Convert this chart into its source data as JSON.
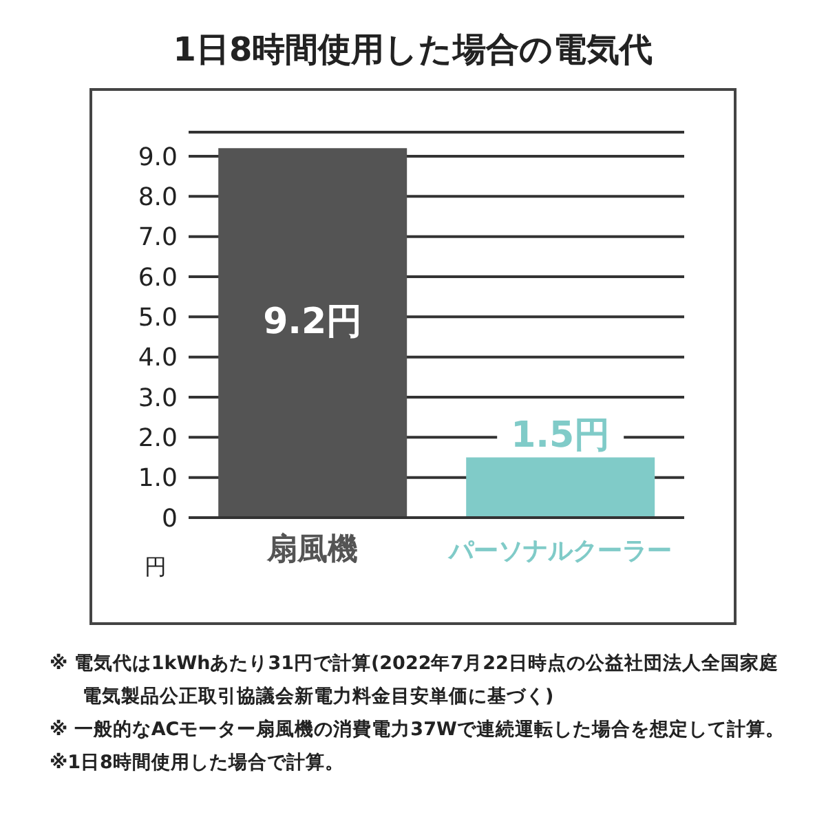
{
  "chart_data": {
    "type": "bar",
    "title": "1日8時間使用した場合の電気代",
    "ylabel": "円",
    "categories": [
      "扇風機",
      "パーソナルクーラー"
    ],
    "values": [
      9.2,
      1.5
    ],
    "colors": [
      "#545454",
      "#80cbc8"
    ],
    "value_labels": [
      "9.2円",
      "1.5円"
    ],
    "ylim": [
      0,
      9.6
    ],
    "yticks": [
      0,
      {
        "value": 1,
        "label": "1.0"
      },
      {
        "value": 2,
        "label": "2.0"
      },
      {
        "value": 3,
        "label": "3.0"
      },
      {
        "value": 4,
        "label": "4.0"
      },
      {
        "value": 5,
        "label": "5.0"
      },
      {
        "value": 6,
        "label": "6.0"
      },
      {
        "value": 7,
        "label": "7.0"
      },
      {
        "value": 8,
        "label": "8.0"
      },
      {
        "value": 9,
        "label": "9.0"
      }
    ],
    "grid": "y",
    "annotations": [
      "※ 電気代は1kWhあたり31円で計算(2022年7月22日時点の公益社団法人全国家庭電気製品公正取引協議会新電力料金目安単価に基づく)",
      "※ 一般的なACモーター扇風機の消費電力37Wで連続運転した場合を想定して計算。",
      "※1日8時間使用した場合で計算。"
    ]
  }
}
